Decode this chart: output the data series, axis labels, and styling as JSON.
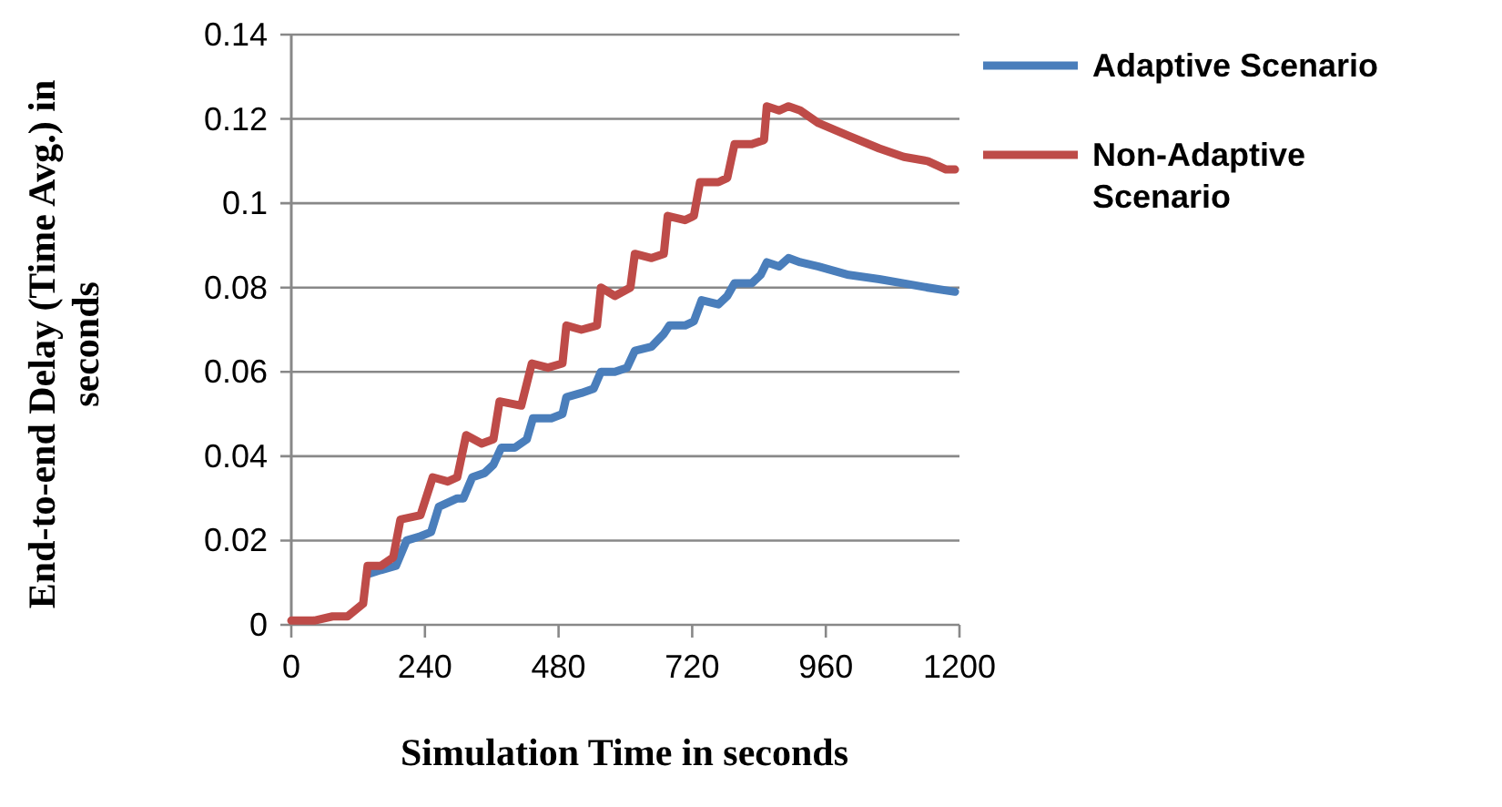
{
  "chart_data": {
    "type": "line",
    "xlabel": "Simulation Time in seconds",
    "ylabel": "End-to-end Delay (Time Avg.) in seconds",
    "xlim": [
      0,
      1200
    ],
    "xticks": [
      0,
      240,
      480,
      720,
      960,
      1200
    ],
    "ylim": [
      0,
      0.14
    ],
    "yticks": [
      0,
      0.02,
      0.04,
      0.06,
      0.08,
      0.1,
      0.12,
      0.14
    ],
    "grid": "y",
    "legend": "right",
    "marker": "none",
    "line_style": "solid",
    "series": [
      {
        "name": "Adaptive Scenario",
        "color": "#4a7ebb",
        "x": [
          137,
          161,
          188,
          207,
          232,
          251,
          265,
          298,
          309,
          325,
          347,
          363,
          377,
          401,
          423,
          434,
          467,
          487,
          494,
          521,
          543,
          556,
          581,
          603,
          617,
          647,
          669,
          679,
          707,
          723,
          737,
          767,
          783,
          796,
          827,
          843,
          854,
          876,
          893,
          914,
          947,
          1001,
          1056,
          1100,
          1143,
          1192
        ],
        "values": [
          0.012,
          0.013,
          0.014,
          0.02,
          0.021,
          0.022,
          0.028,
          0.03,
          0.03,
          0.035,
          0.036,
          0.038,
          0.042,
          0.042,
          0.044,
          0.049,
          0.049,
          0.05,
          0.054,
          0.055,
          0.056,
          0.06,
          0.06,
          0.061,
          0.065,
          0.066,
          0.069,
          0.071,
          0.071,
          0.072,
          0.077,
          0.076,
          0.078,
          0.081,
          0.081,
          0.083,
          0.086,
          0.085,
          0.087,
          0.086,
          0.085,
          0.083,
          0.082,
          0.081,
          0.08,
          0.079
        ]
      },
      {
        "name": "Non-Adaptive Scenario",
        "color": "#be4b48",
        "x": [
          0,
          41,
          74,
          101,
          129,
          137,
          161,
          183,
          196,
          232,
          254,
          281,
          298,
          314,
          342,
          363,
          374,
          413,
          432,
          461,
          487,
          494,
          521,
          549,
          556,
          581,
          609,
          617,
          647,
          669,
          676,
          707,
          723,
          734,
          767,
          783,
          796,
          827,
          849,
          854,
          876,
          893,
          914,
          947,
          1001,
          1056,
          1100,
          1143,
          1176,
          1192
        ],
        "values": [
          0.001,
          0.001,
          0.002,
          0.002,
          0.005,
          0.014,
          0.014,
          0.016,
          0.025,
          0.026,
          0.035,
          0.034,
          0.035,
          0.045,
          0.043,
          0.044,
          0.053,
          0.052,
          0.062,
          0.061,
          0.062,
          0.071,
          0.07,
          0.071,
          0.08,
          0.078,
          0.08,
          0.088,
          0.087,
          0.088,
          0.097,
          0.096,
          0.097,
          0.105,
          0.105,
          0.106,
          0.114,
          0.114,
          0.115,
          0.123,
          0.122,
          0.123,
          0.122,
          0.119,
          0.116,
          0.113,
          0.111,
          0.11,
          0.108,
          0.108
        ]
      }
    ]
  }
}
